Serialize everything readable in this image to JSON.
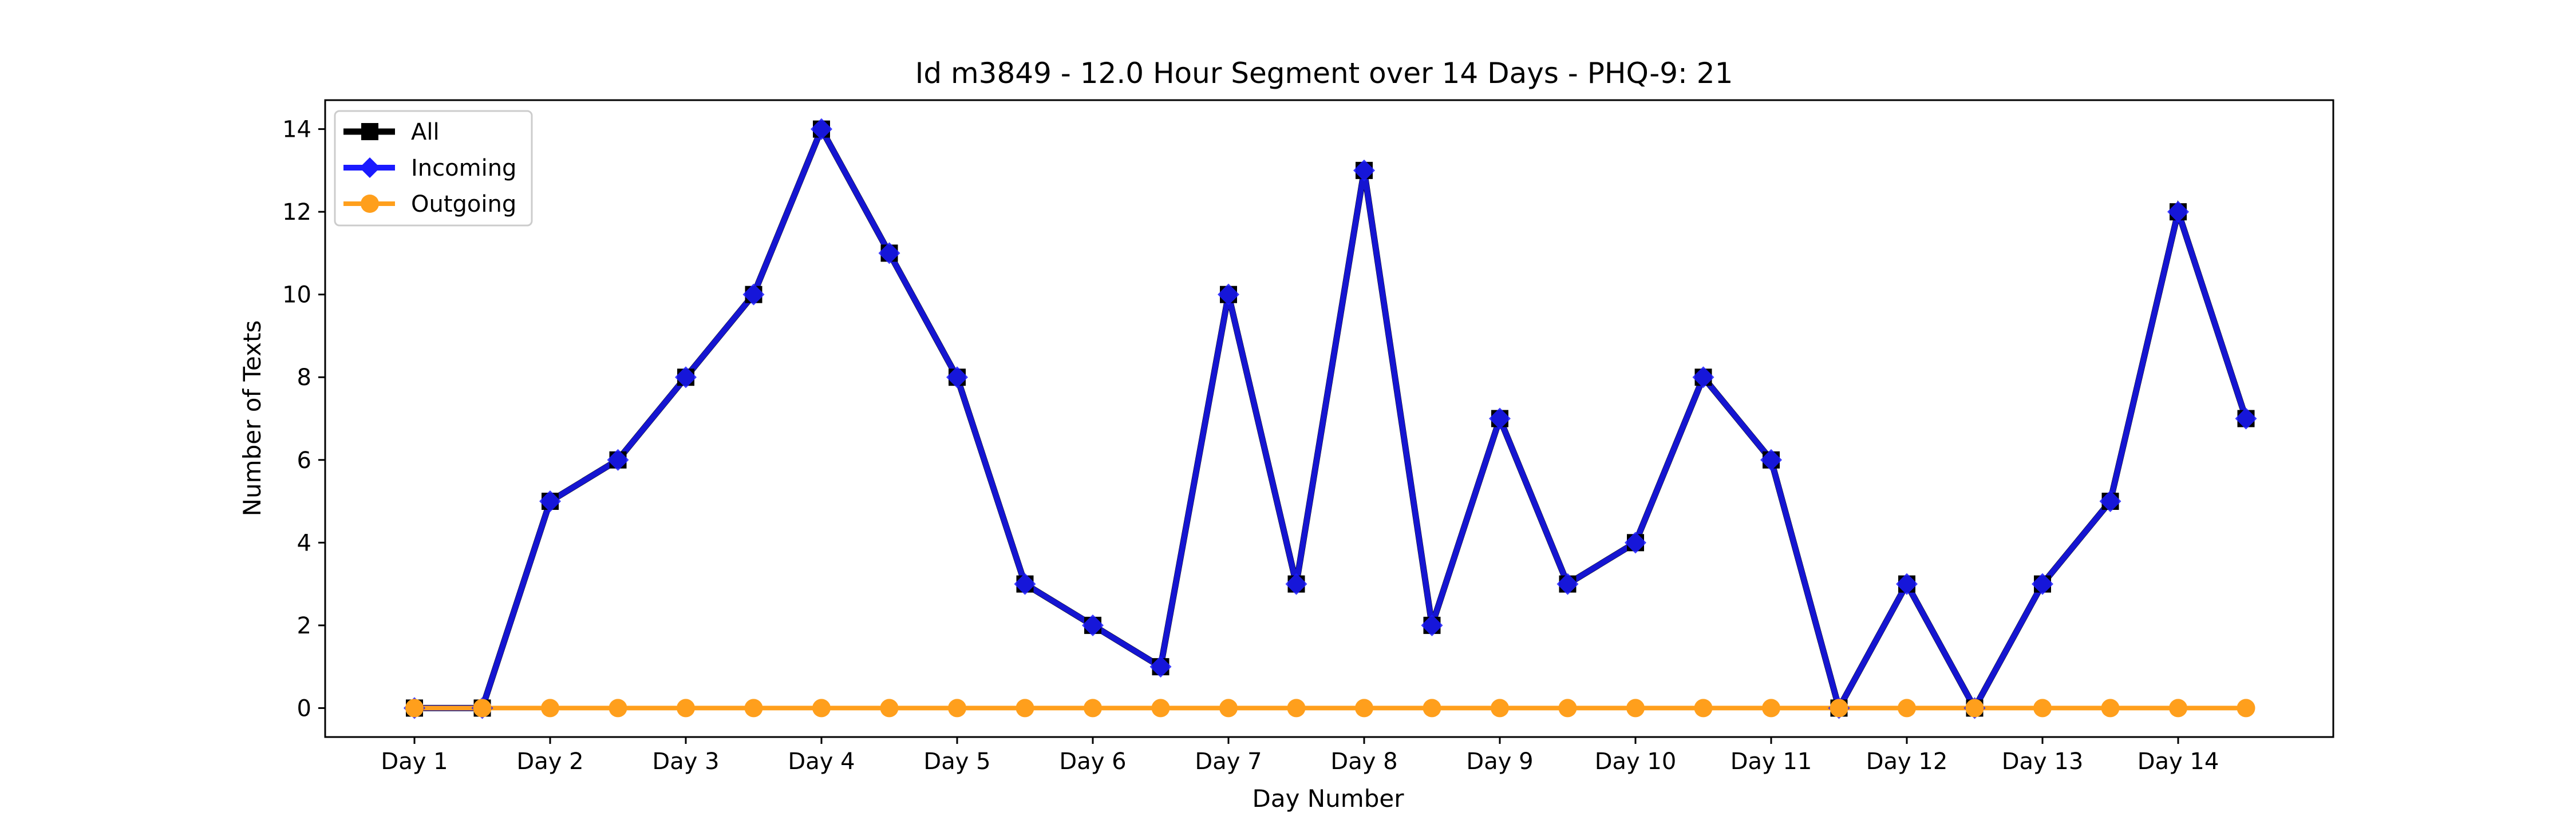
{
  "chart_data": {
    "type": "line",
    "title": "Id m3849 - 12.0 Hour Segment over 14 Days - PHQ-9: 21",
    "xlabel": "Day Number",
    "ylabel": "Number of Texts",
    "x_tick_labels": [
      "Day 1",
      "Day 2",
      "Day 3",
      "Day 4",
      "Day 5",
      "Day 6",
      "Day 7",
      "Day 8",
      "Day 9",
      "Day 10",
      "Day 11",
      "Day 12",
      "Day 13",
      "Day 14"
    ],
    "y_ticks": [
      0,
      2,
      4,
      6,
      8,
      10,
      12,
      14
    ],
    "ylim": [
      -0.7,
      14.7
    ],
    "grid": false,
    "legend_placement": "top-left",
    "series": [
      {
        "name": "All",
        "color": "#000000",
        "marker": "square",
        "values": [
          0,
          0,
          5,
          6,
          8,
          10,
          14,
          11,
          8,
          3,
          2,
          1,
          10,
          3,
          13,
          2,
          7,
          3,
          4,
          8,
          6,
          0,
          3,
          0,
          3,
          5,
          12,
          7
        ]
      },
      {
        "name": "Incoming",
        "color": "#1a1aff",
        "marker": "diamond",
        "values": [
          0,
          0,
          5,
          6,
          8,
          10,
          14,
          11,
          8,
          3,
          2,
          1,
          10,
          3,
          13,
          2,
          7,
          3,
          4,
          8,
          6,
          0,
          3,
          0,
          3,
          5,
          12,
          7
        ]
      },
      {
        "name": "Outgoing",
        "color": "#ff9f1c",
        "marker": "circle",
        "values": [
          0,
          0,
          0,
          0,
          0,
          0,
          0,
          0,
          0,
          0,
          0,
          0,
          0,
          0,
          0,
          0,
          0,
          0,
          0,
          0,
          0,
          0,
          0,
          0,
          0,
          0,
          0,
          0
        ]
      }
    ]
  }
}
